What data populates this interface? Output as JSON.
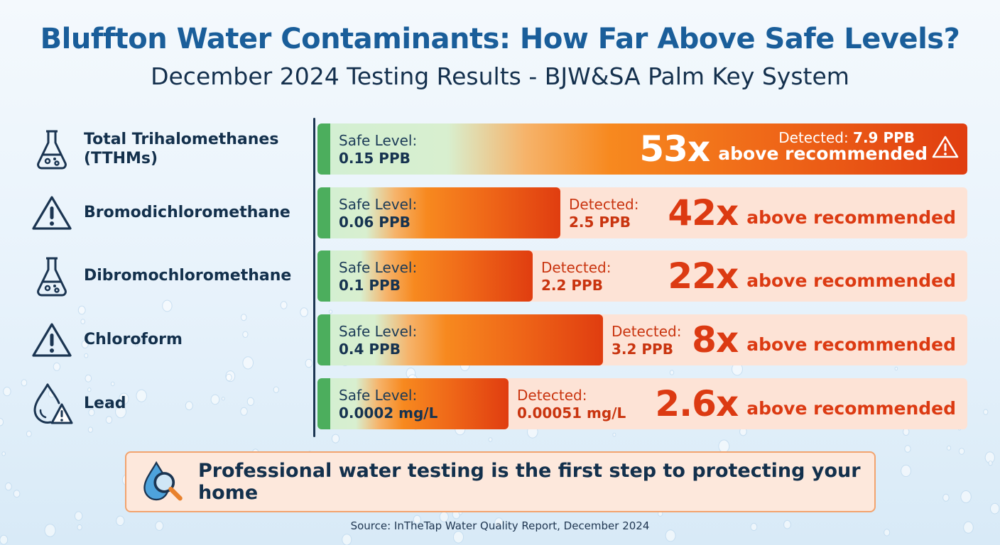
{
  "title": "Bluffton Water Contaminants: How Far Above Safe Levels?",
  "subtitle": "December 2024 Testing Results - BJW&SA Palm Key System",
  "icons": [
    "flask-icon",
    "warning-icon",
    "flask-icon",
    "warning-icon",
    "water-drop-warning-icon"
  ],
  "chart_data": {
    "type": "bar",
    "orientation": "horizontal",
    "categories": [
      "Total Trihalomethanes\n(TTHMs)",
      "Bromodichloromethane",
      "Dibromochloromethane",
      "Chloroform",
      "Lead"
    ],
    "safe_label": "Safe Level:",
    "detected_label": "Detected:",
    "suffix": "above recommended",
    "safe_levels": [
      "0.15 PPB",
      "0.06 PPB",
      "0.1 PPB",
      "0.4 PPB",
      "0.0002 mg/L"
    ],
    "detected": [
      "7.9 PPB",
      "2.5 PPB",
      "2.2 PPB",
      "3.2 PPB",
      "0.00051 mg/L"
    ],
    "multiplier_labels": [
      "53x",
      "42x",
      "22x",
      "8x",
      "2.6x"
    ],
    "values": [
      53,
      42,
      22,
      8,
      2.6
    ],
    "colors": {
      "safe": "#4cae5d",
      "high": "#e03d10",
      "track": "#fde3d6"
    }
  },
  "cta": {
    "text": "Professional water testing is the first step to protecting your home",
    "icon": "magnifier-water-drop-icon"
  },
  "source": "Source: InTheTap Water Quality Report, December 2024"
}
